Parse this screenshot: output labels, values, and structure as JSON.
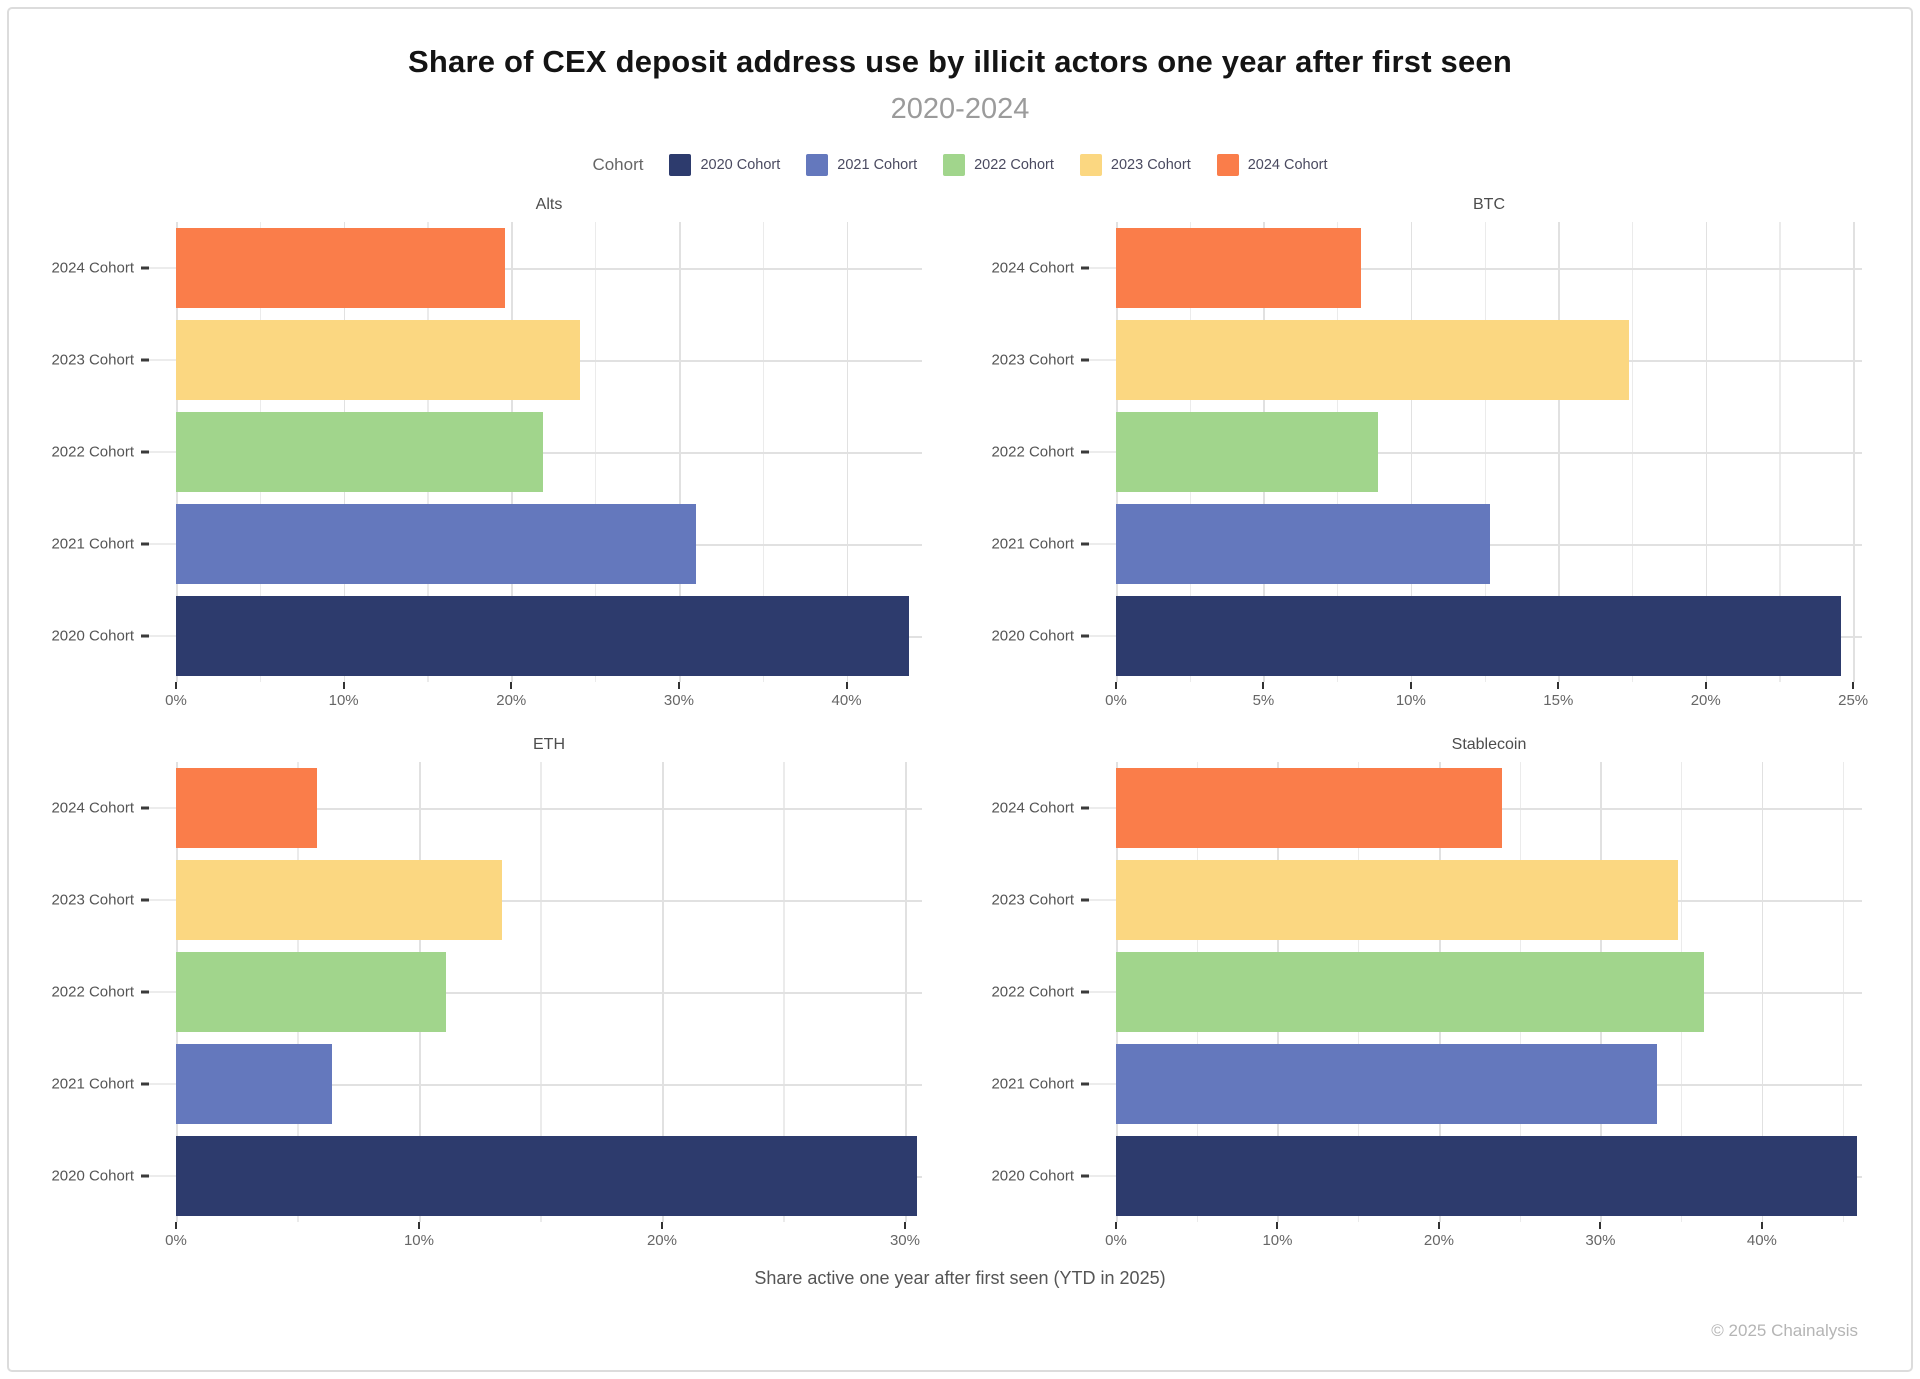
{
  "title": "Share of CEX deposit address use by illicit actors one year after first seen",
  "subtitle": "2020-2024",
  "legend": {
    "title": "Cohort",
    "items": [
      {
        "label": "2020 Cohort",
        "color": "#2d3b6d"
      },
      {
        "label": "2021 Cohort",
        "color": "#6478bd"
      },
      {
        "label": "2022 Cohort",
        "color": "#a1d58c"
      },
      {
        "label": "2023 Cohort",
        "color": "#fbd781"
      },
      {
        "label": "2024 Cohort",
        "color": "#fa7d4a"
      }
    ]
  },
  "caption": "Share active one year after first seen (YTD in 2025)",
  "footer": "© 2025 Chainalysis",
  "chart_data": [
    {
      "type": "bar",
      "orientation": "horizontal",
      "title": "Alts",
      "categories": [
        "2024 Cohort",
        "2023 Cohort",
        "2022 Cohort",
        "2021 Cohort",
        "2020 Cohort"
      ],
      "values": [
        19.6,
        24.1,
        21.9,
        31.0,
        43.7
      ],
      "xlim": [
        0,
        44.5
      ],
      "x_ticks": [
        0,
        10,
        20,
        30,
        40
      ],
      "x_tick_labels": [
        "0%",
        "10%",
        "20%",
        "30%",
        "40%"
      ],
      "x_minor": [
        5,
        15,
        25,
        35
      ],
      "grid": true,
      "legend_position": "top"
    },
    {
      "type": "bar",
      "orientation": "horizontal",
      "title": "BTC",
      "categories": [
        "2024 Cohort",
        "2023 Cohort",
        "2022 Cohort",
        "2021 Cohort",
        "2020 Cohort"
      ],
      "values": [
        8.3,
        17.4,
        8.9,
        12.7,
        24.6
      ],
      "xlim": [
        0,
        25.3
      ],
      "x_ticks": [
        0,
        5,
        10,
        15,
        20,
        25
      ],
      "x_tick_labels": [
        "0%",
        "5%",
        "10%",
        "15%",
        "20%",
        "25%"
      ],
      "x_minor": [
        2.5,
        7.5,
        12.5,
        17.5,
        22.5
      ],
      "grid": true,
      "legend_position": "top"
    },
    {
      "type": "bar",
      "orientation": "horizontal",
      "title": "ETH",
      "categories": [
        "2024 Cohort",
        "2023 Cohort",
        "2022 Cohort",
        "2021 Cohort",
        "2020 Cohort"
      ],
      "values": [
        5.8,
        13.4,
        11.1,
        6.4,
        30.5
      ],
      "xlim": [
        0,
        30.7
      ],
      "x_ticks": [
        0,
        10,
        20,
        30
      ],
      "x_tick_labels": [
        "0%",
        "10%",
        "20%",
        "30%"
      ],
      "x_minor": [
        5,
        15,
        25
      ],
      "grid": true,
      "legend_position": "top"
    },
    {
      "type": "bar",
      "orientation": "horizontal",
      "title": "Stablecoin",
      "categories": [
        "2024 Cohort",
        "2023 Cohort",
        "2022 Cohort",
        "2021 Cohort",
        "2020 Cohort"
      ],
      "values": [
        23.9,
        34.8,
        36.4,
        33.5,
        45.9
      ],
      "xlim": [
        0,
        46.2
      ],
      "x_ticks": [
        0,
        10,
        20,
        30,
        40
      ],
      "x_tick_labels": [
        "0%",
        "10%",
        "20%",
        "30%",
        "40%"
      ],
      "x_minor": [
        5,
        15,
        25,
        35,
        45
      ],
      "grid": true,
      "legend_position": "top"
    }
  ]
}
